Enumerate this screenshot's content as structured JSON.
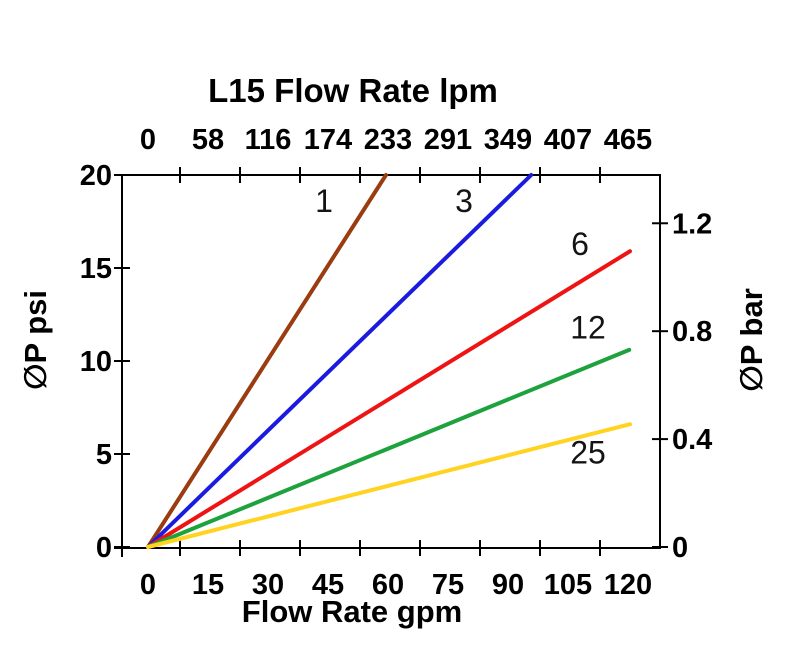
{
  "chart_data": {
    "type": "line",
    "title": "L15 Flow Rate lpm",
    "background_color": "#ffffff",
    "axis_color": "#000000",
    "grid": false,
    "top_axis": {
      "label": "L15 Flow Rate lpm",
      "unit": "lpm",
      "tick_labels": [
        "0",
        "58",
        "116",
        "174",
        "233",
        "291",
        "349",
        "407",
        "465"
      ],
      "tick_values_lpm": [
        0,
        58,
        116,
        174,
        233,
        291,
        349,
        407,
        465
      ]
    },
    "bottom_axis": {
      "label": "Flow Rate gpm",
      "unit": "gpm",
      "tick_labels": [
        "0",
        "15",
        "30",
        "45",
        "60",
        "75",
        "90",
        "105",
        "120"
      ],
      "tick_values_gpm": [
        0,
        15,
        30,
        45,
        60,
        75,
        90,
        105,
        120
      ],
      "range_gpm": [
        0,
        128
      ]
    },
    "left_axis": {
      "label": "∅P psi",
      "unit": "psi",
      "tick_labels": [
        "0",
        "5",
        "10",
        "15",
        "20"
      ],
      "tick_values_psi": [
        0,
        5,
        10,
        15,
        20
      ],
      "range_psi": [
        0,
        20
      ]
    },
    "right_axis": {
      "label": "∅P bar",
      "unit": "bar",
      "tick_labels": [
        "0",
        "0.4",
        "0.8",
        "1.2"
      ],
      "tick_values_bar": [
        0,
        0.4,
        0.8,
        1.2
      ],
      "psi_per_bar": 14.5038
    },
    "series": [
      {
        "label": "1",
        "color": "#9a3b10",
        "points_gpm_psi": [
          [
            0,
            0
          ],
          [
            59.5,
            20
          ]
        ],
        "label_at_gpm_psi": [
          44,
          18.0
        ]
      },
      {
        "label": "3",
        "color": "#1b1be0",
        "points_gpm_psi": [
          [
            0,
            0
          ],
          [
            95.8,
            20
          ]
        ],
        "label_at_gpm_psi": [
          79,
          18.0
        ]
      },
      {
        "label": "6",
        "color": "#ee1414",
        "points_gpm_psi": [
          [
            0,
            0
          ],
          [
            120.5,
            15.9
          ]
        ],
        "label_at_gpm_psi": [
          108,
          15.7
        ]
      },
      {
        "label": "12",
        "color": "#1da23d",
        "points_gpm_psi": [
          [
            0,
            0
          ],
          [
            120.3,
            10.6
          ]
        ],
        "label_at_gpm_psi": [
          110,
          11.2
        ]
      },
      {
        "label": "25",
        "color": "#ffd320",
        "points_gpm_psi": [
          [
            0,
            0
          ],
          [
            120.5,
            6.6
          ]
        ],
        "label_at_gpm_psi": [
          110,
          4.5
        ]
      }
    ]
  }
}
